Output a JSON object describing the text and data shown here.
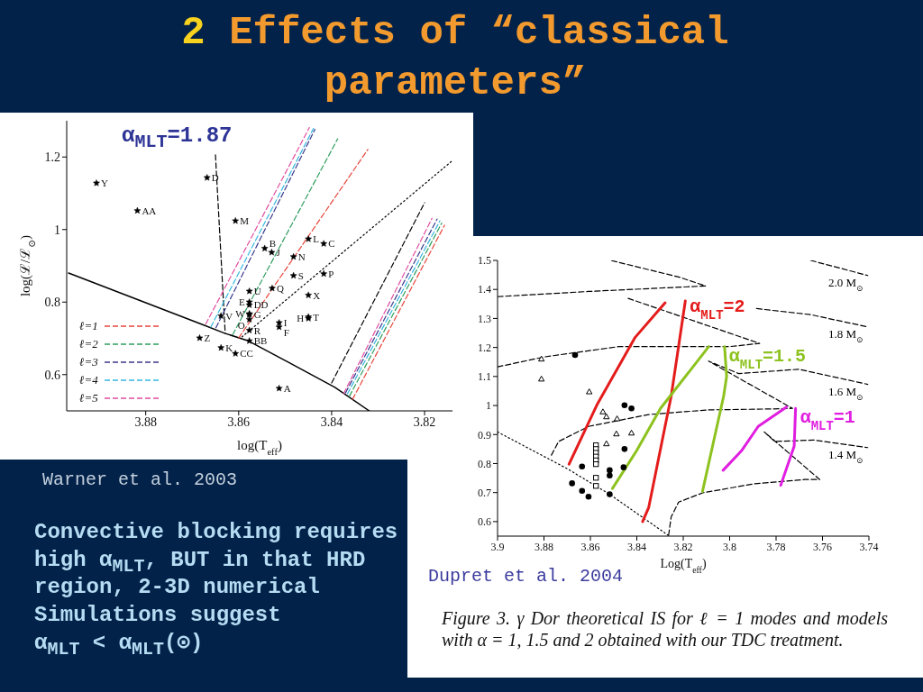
{
  "chart_data": [
    {
      "type": "other",
      "title": "2 Effects of “classical parameters”",
      "annotations": [
        "Convective blocking requires high α$_{MLT}$, BUT in that HRD region, 2-3D numerical Simulations suggest\nα$_{MLT}$ < α$_{MLT}$(⊙)"
      ]
    },
    {
      "type": "scatter",
      "xlabel": "log(T$_{eff}$)",
      "ylabel": "log(ℒ/ℒ$_{⊙}$)",
      "xlim": [
        3.897,
        3.814
      ],
      "ylim": [
        0.5,
        1.3
      ],
      "xticks": [
        3.88,
        3.86,
        3.84,
        3.82
      ],
      "yticks": [
        0.6,
        0.8,
        1,
        1.2
      ],
      "grid": false,
      "legend": "bottom left",
      "annotations": [
        "α$_{MLT}$=1.87",
        "Warner et al. 2003"
      ],
      "series": [
        {
          "type": "scatter",
          "marker": "star",
          "color": "#000000",
          "x": [
            3.8906,
            3.8818,
            3.8668,
            3.8607,
            3.8544,
            3.8529,
            3.845,
            3.8417,
            3.8482,
            3.8482,
            3.8417,
            3.8577,
            3.8528,
            3.845,
            3.8577,
            3.8577,
            3.8577,
            3.8577,
            3.8577,
            3.8577,
            3.8577,
            3.8638,
            3.845,
            3.845,
            3.8513,
            3.8513,
            3.8684,
            3.8638,
            3.8607,
            3.8513
          ],
          "values": [
            1.128,
            1.052,
            1.143,
            1.024,
            0.948,
            0.937,
            0.974,
            0.961,
            0.925,
            0.873,
            0.878,
            0.83,
            0.838,
            0.819,
            0.792,
            0.8,
            0.765,
            0.768,
            0.722,
            0.752,
            0.693,
            0.762,
            0.759,
            0.755,
            0.743,
            0.731,
            0.701,
            0.674,
            0.658,
            0.562
          ],
          "value_labels": [
            "Y",
            "AA",
            "D",
            "M",
            "B",
            "J",
            "L",
            "C",
            "N",
            "S",
            "P",
            "U",
            "Q",
            "X",
            "DD",
            "E",
            "G",
            "W",
            "R",
            "O",
            "BB",
            "V",
            "T",
            "H",
            "I",
            "F",
            "Z",
            "K",
            "CC",
            "A"
          ]
        },
        {
          "type": "line",
          "line_style": "solid",
          "color": "#000000",
          "x": [
            3.8966,
            3.8684,
            3.863,
            3.8581,
            3.849,
            3.8393,
            3.8319
          ],
          "values": [
            0.88,
            0.741,
            0.714,
            0.694,
            0.632,
            0.565,
            0.5
          ]
        },
        {
          "type": "line",
          "line_style": "dashed",
          "color": "#000000",
          "x": [
            3.865,
            3.8629
          ],
          "values": [
            1.206,
            0.714
          ]
        },
        {
          "type": "line",
          "line_style": "dotted",
          "color": "#000000",
          "x": [
            3.8593,
            3.8142
          ],
          "values": [
            0.704,
            1.188
          ]
        },
        {
          "type": "line",
          "line_style": "dashed",
          "color": "#000000",
          "x": [
            3.84,
            3.82
          ],
          "values": [
            0.577,
            1.074
          ]
        },
        {
          "type": "line",
          "name": "ℓ=1",
          "line_style": "dashed",
          "color": "#e8453c",
          "x": [
            3.86,
            3.8322,
            null,
            3.8355,
            3.8157
          ],
          "values": [
            0.701,
            1.221,
            null,
            0.532,
            1.012
          ]
        },
        {
          "type": "line",
          "name": "ℓ=2",
          "line_style": "dashed",
          "color": "#2f9e5e",
          "x": [
            3.8613,
            3.8387,
            null,
            3.8362,
            3.8163
          ],
          "values": [
            0.71,
            1.25,
            null,
            0.54,
            1.018
          ]
        },
        {
          "type": "line",
          "name": "ℓ=3",
          "line_style": "dashed",
          "color": "#3a3a8c",
          "x": [
            3.8649,
            3.8436,
            null,
            3.837,
            3.8173
          ],
          "values": [
            0.729,
            1.276,
            null,
            0.55,
            1.029
          ]
        },
        {
          "type": "line",
          "name": "ℓ=4",
          "line_style": "dashed",
          "color": "#35b6e0",
          "x": [
            3.866,
            3.8439,
            null,
            3.8366,
            3.8167
          ],
          "values": [
            0.731,
            1.279,
            null,
            0.547,
            1.024
          ]
        },
        {
          "type": "line",
          "name": "ℓ=5",
          "line_style": "dashed",
          "color": "#e04ea0",
          "x": [
            3.8671,
            3.8448,
            null,
            3.8374,
            3.8184
          ],
          "values": [
            0.739,
            1.281,
            null,
            0.548,
            1.031
          ]
        }
      ]
    },
    {
      "type": "line",
      "xlabel": "Log(T$_{eff}$)",
      "xlim": [
        3.9,
        3.74
      ],
      "ylim": [
        0.55,
        1.5
      ],
      "xticks": [
        3.9,
        3.88,
        3.86,
        3.84,
        3.82,
        3.8,
        3.78,
        3.76,
        3.74
      ],
      "yticks": [
        0.6,
        0.7,
        0.8,
        0.9,
        1,
        1.1,
        1.2,
        1.3,
        1.4,
        1.5
      ],
      "grid": false,
      "legend": false,
      "annotations": [
        "Dupret et al. 2004",
        "Figure 3. γ Dor theoretical IS for ℓ = 1 modes and models with α = 1, 1.5 and 2 obtained with our TDC treatment."
      ],
      "series": [
        {
          "type": "line",
          "line_style": "dotted",
          "color": "#000000",
          "x": [
            3.9,
            3.8699,
            3.8517,
            3.8265
          ],
          "values": [
            0.909,
            0.782,
            0.694,
            0.553
          ]
        },
        {
          "type": "line",
          "name": "2.0 M$_{⊙}$",
          "line_style": "dashed",
          "color": "#000000",
          "x": [
            3.9,
            3.8608,
            3.8104,
            3.822,
            3.8513,
            null,
            3.7651,
            3.7405
          ],
          "values": [
            1.375,
            1.393,
            1.412,
            1.443,
            1.5,
            null,
            1.5,
            1.448
          ]
        },
        {
          "type": "line",
          "name": "1.8 M$_{⊙}$",
          "line_style": "dashed",
          "color": "#000000",
          "x": [
            3.9,
            3.8802,
            3.8479,
            3.8,
            3.7871,
            3.844,
            null,
            3.7884,
            3.7651,
            3.7405
          ],
          "values": [
            1.133,
            1.167,
            1.203,
            1.203,
            1.214,
            1.37,
            null,
            1.334,
            1.313,
            1.271
          ]
        },
        {
          "type": "line",
          "name": "1.6 M$_{⊙}$",
          "line_style": "dashed",
          "color": "#000000",
          "x": [
            3.8768,
            3.8737,
            3.8608,
            3.8349,
            3.8091,
            3.7832,
            3.7729,
            3.8091,
            3.7961,
            3.7703,
            3.7405
          ],
          "values": [
            0.829,
            0.876,
            0.928,
            0.969,
            0.985,
            0.988,
            0.99,
            1.153,
            1.11,
            1.125,
            1.073
          ]
        },
        {
          "type": "line",
          "name": "1.4 M$_{⊙}$",
          "line_style": "dashed",
          "color": "#000000",
          "x": [
            3.8263,
            3.8252,
            3.822,
            3.8117,
            3.7897,
            3.7677,
            3.7612,
            3.7851,
            3.7806,
            3.7638,
            3.7405
          ],
          "values": [
            0.553,
            0.616,
            0.667,
            0.699,
            0.73,
            0.745,
            0.745,
            0.909,
            0.876,
            0.881,
            0.855
          ]
        },
        {
          "type": "line",
          "name": "α$_{MLT}$=2",
          "line_style": "solid",
          "color": "#e41c1c",
          "x": [
            3.8692,
            3.857,
            3.8407,
            3.8278,
            null,
            3.8375,
            3.8349,
            3.8252,
            3.8191
          ],
          "values": [
            0.798,
            1.005,
            1.235,
            1.354,
            null,
            0.6,
            0.648,
            1.032,
            1.36
          ]
        },
        {
          "type": "line",
          "name": "α$_{MLT}$=1.5",
          "line_style": "solid",
          "color": "#8dc21f",
          "x": [
            3.8505,
            3.8401,
            3.8298,
            3.809,
            null,
            3.8117,
            3.8026,
            3.8013,
            3.8022
          ],
          "values": [
            0.714,
            0.844,
            0.99,
            1.203,
            null,
            0.704,
            1.032,
            1.1,
            1.203
          ]
        },
        {
          "type": "line",
          "name": "α$_{MLT}$=1",
          "line_style": "solid",
          "color": "#e01ee0",
          "x": [
            3.8028,
            3.7949,
            3.7877,
            3.7755,
            null,
            3.778,
            3.7722,
            3.7716
          ],
          "values": [
            0.777,
            0.844,
            0.928,
            0.995,
            null,
            0.725,
            0.86,
            0.99
          ]
        },
        {
          "type": "scatter",
          "marker": "circle",
          "color": "#000000",
          "x": [
            3.8679,
            3.8636,
            3.8636,
            3.8608,
            3.8517,
            3.8517,
            3.8517,
            3.8453,
            3.8453,
            3.8423,
            3.8457,
            3.8666
          ],
          "values": [
            0.732,
            0.79,
            0.706,
            0.686,
            0.694,
            0.777,
            0.759,
            0.85,
            1.001,
            0.99,
            0.787,
            1.174
          ]
        },
        {
          "type": "scatter",
          "marker": "triangle",
          "color": "#000000",
          "x": [
            3.8811,
            3.8811,
            3.8605,
            3.8546,
            3.8531,
            3.8485,
            3.8488,
            3.8423,
            3.8531
          ],
          "values": [
            1.16,
            1.091,
            1.047,
            0.978,
            0.961,
            0.954,
            0.902,
            0.905,
            0.868
          ]
        },
        {
          "type": "scatter",
          "marker": "square",
          "color": "#000000",
          "x": [
            3.8576,
            3.8576,
            3.8576,
            3.8576,
            3.8576,
            3.8576,
            3.8576,
            3.8576
          ],
          "values": [
            0.863,
            0.85,
            0.837,
            0.824,
            0.811,
            0.798,
            0.751,
            0.723
          ]
        }
      ]
    }
  ]
}
